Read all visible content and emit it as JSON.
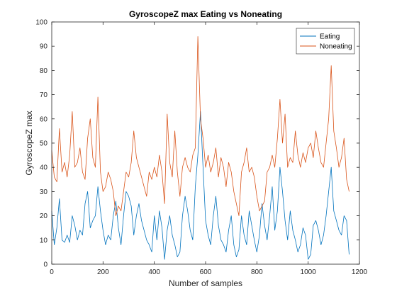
{
  "chart_data": {
    "type": "line",
    "title": "GyroscopeZ max Eating vs Noneating",
    "xlabel": "Number of samples",
    "ylabel": "GyroscopeZ max",
    "xlim": [
      0,
      1200
    ],
    "ylim": [
      0,
      100
    ],
    "x_ticks": [
      0,
      200,
      400,
      600,
      800,
      1000,
      1200
    ],
    "y_ticks": [
      0,
      10,
      20,
      30,
      40,
      50,
      60,
      70,
      80,
      90,
      100
    ],
    "grid": false,
    "legend_position": "top-right",
    "series": [
      {
        "name": "Eating",
        "color": "#0072BD",
        "x": [
          0,
          10,
          20,
          30,
          40,
          50,
          60,
          70,
          80,
          90,
          100,
          110,
          120,
          130,
          140,
          150,
          160,
          170,
          180,
          190,
          200,
          210,
          220,
          230,
          240,
          250,
          260,
          270,
          280,
          290,
          300,
          310,
          320,
          330,
          340,
          350,
          360,
          370,
          380,
          390,
          400,
          410,
          420,
          430,
          440,
          450,
          460,
          470,
          480,
          490,
          500,
          510,
          520,
          530,
          540,
          550,
          560,
          570,
          580,
          590,
          600,
          610,
          620,
          630,
          640,
          650,
          660,
          670,
          680,
          690,
          700,
          710,
          720,
          730,
          740,
          750,
          760,
          770,
          780,
          790,
          800,
          810,
          820,
          830,
          840,
          850,
          860,
          870,
          880,
          890,
          900,
          910,
          920,
          930,
          940,
          950,
          960,
          970,
          980,
          990,
          1000,
          1010,
          1020,
          1030,
          1040,
          1050,
          1060,
          1070,
          1080,
          1090,
          1100,
          1110,
          1120,
          1130,
          1140,
          1150,
          1160
        ],
        "values": [
          22,
          8,
          15,
          27,
          10,
          9,
          12,
          9,
          20,
          16,
          10,
          14,
          12,
          25,
          30,
          15,
          18,
          20,
          32,
          22,
          14,
          8,
          12,
          10,
          20,
          26,
          15,
          8,
          20,
          30,
          28,
          24,
          12,
          20,
          25,
          18,
          14,
          10,
          8,
          5,
          20,
          10,
          22,
          15,
          2,
          14,
          20,
          12,
          8,
          3,
          5,
          20,
          28,
          22,
          14,
          10,
          32,
          45,
          63,
          40,
          18,
          12,
          8,
          20,
          28,
          16,
          10,
          8,
          5,
          14,
          20,
          8,
          3,
          6,
          20,
          12,
          8,
          22,
          16,
          10,
          5,
          12,
          25,
          16,
          10,
          20,
          32,
          14,
          22,
          40,
          30,
          18,
          10,
          22,
          14,
          10,
          5,
          8,
          15,
          12,
          2,
          4,
          16,
          18,
          14,
          8,
          12,
          20,
          30,
          40,
          22,
          18,
          14,
          12,
          20,
          18,
          4
        ]
      },
      {
        "name": "Noneating",
        "color": "#D95319",
        "x": [
          0,
          10,
          20,
          30,
          40,
          50,
          60,
          70,
          80,
          90,
          100,
          110,
          120,
          130,
          140,
          150,
          160,
          170,
          180,
          190,
          200,
          210,
          220,
          230,
          240,
          250,
          260,
          270,
          280,
          290,
          300,
          310,
          320,
          330,
          340,
          350,
          360,
          370,
          380,
          390,
          400,
          410,
          420,
          430,
          440,
          450,
          460,
          470,
          480,
          490,
          500,
          510,
          520,
          530,
          540,
          550,
          560,
          570,
          580,
          590,
          600,
          610,
          620,
          630,
          640,
          650,
          660,
          670,
          680,
          690,
          700,
          710,
          720,
          730,
          740,
          750,
          760,
          770,
          780,
          790,
          800,
          810,
          820,
          830,
          840,
          850,
          860,
          870,
          880,
          890,
          900,
          910,
          920,
          930,
          940,
          950,
          960,
          970,
          980,
          990,
          1000,
          1010,
          1020,
          1030,
          1040,
          1050,
          1060,
          1070,
          1080,
          1090,
          1100,
          1110,
          1120,
          1130,
          1140,
          1150,
          1160
        ],
        "values": [
          47,
          36,
          34,
          56,
          38,
          42,
          36,
          45,
          63,
          40,
          42,
          48,
          38,
          35,
          52,
          60,
          44,
          40,
          69,
          38,
          30,
          32,
          38,
          35,
          30,
          20,
          24,
          22,
          30,
          38,
          36,
          42,
          55,
          44,
          40,
          36,
          32,
          28,
          38,
          35,
          40,
          36,
          45,
          38,
          25,
          62,
          42,
          36,
          55,
          38,
          28,
          40,
          44,
          40,
          38,
          45,
          48,
          94,
          60,
          52,
          40,
          45,
          38,
          42,
          48,
          36,
          44,
          40,
          32,
          42,
          38,
          30,
          25,
          20,
          38,
          42,
          48,
          38,
          40,
          36,
          28,
          22,
          24,
          26,
          38,
          40,
          45,
          40,
          52,
          68,
          50,
          62,
          40,
          44,
          42,
          55,
          45,
          40,
          46,
          42,
          48,
          50,
          44,
          55,
          48,
          42,
          40,
          50,
          60,
          82,
          55,
          48,
          40,
          44,
          52,
          35,
          30
        ]
      }
    ]
  }
}
